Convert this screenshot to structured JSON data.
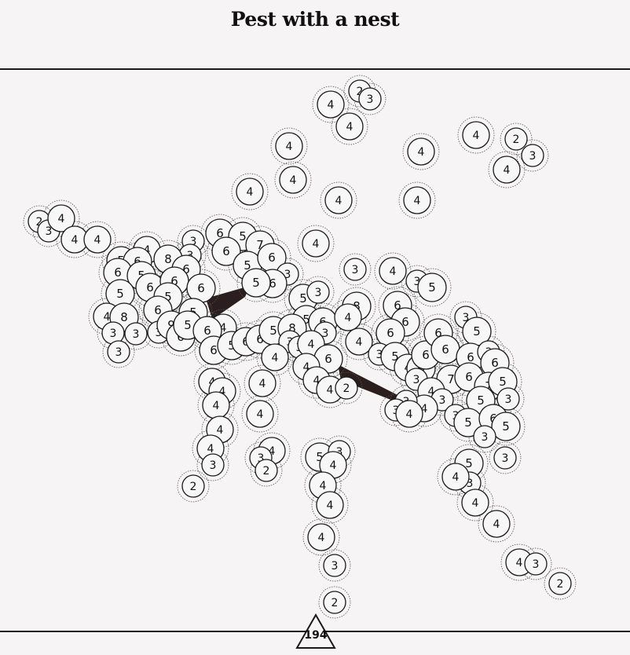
{
  "title": "Pest with a nest",
  "page_number": "194",
  "colors": {
    "ink": "#1a1a1a",
    "wedge": "#2b1e1e",
    "background": "#f6f4f4"
  },
  "puzzle": {
    "type": "hashi-style circle puzzle",
    "solved_bridges": [
      {
        "from": "circle-cluster-left",
        "to": "circle-5-center"
      },
      {
        "from": "circle-6-center",
        "to": "circle-3-right-leg"
      }
    ],
    "node_labels": [
      "2",
      "3",
      "4",
      "5",
      "6",
      "7",
      "8",
      "9"
    ]
  }
}
